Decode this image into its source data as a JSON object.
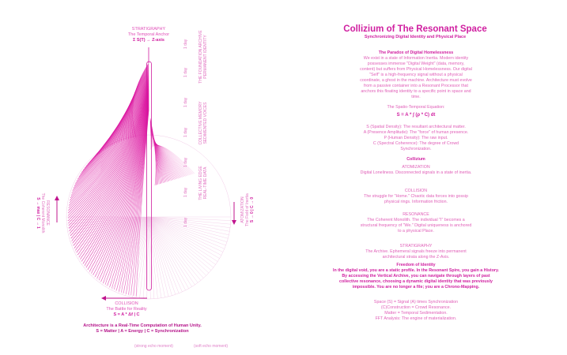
{
  "diagram": {
    "stratigraphy": {
      "title": "STRATIGRAPHY",
      "subtitle": "The Temporal Anchor",
      "formula": "Σ S(T) → Z-axis"
    },
    "collision": {
      "title": "COLLISION",
      "subtitle": "The Battle for Reality",
      "formula": "S = A * Δf | C"
    },
    "atomization": {
      "title": "ATOMIZATION",
      "subtitle": "The Field of Inertia",
      "formula": "S → 0 | C → 0"
    },
    "resonance": {
      "title": "RESONANCE",
      "subtitle": "The Coherent Monolith",
      "formula": "S → max | C → 1"
    },
    "vertical_labels": [
      {
        "title": "THE FOUNDATION ARCHIVE",
        "subtitle": "PERMANENT IDENTITY"
      },
      {
        "title": "COLLECTIVE MEMORY",
        "subtitle": "SEDIMENTED VOICES"
      },
      {
        "title": "THE LIVING EDGE",
        "subtitle": "REAL-TIME DATA"
      }
    ],
    "day_ticks": [
      "1 day",
      "1 day",
      "1 day",
      "1 day",
      "1 day",
      "1 day",
      "1 day"
    ],
    "caption_line1": "Architecture is a Real-Time Computation of Human Unity.",
    "caption_line2": "S = Matter | A = Energy | C = Synchronization",
    "legend": [
      "(strong echo moment)",
      "(soft echo moment)"
    ]
  },
  "panel": {
    "title": "Collizium of The Resonant Space",
    "subtitle": "Synchronizing Digital Identity and Physical Place",
    "paradox_heading": "The Paradox of Digital Homelessness",
    "paradox_text": "We exist in a state of Information Inertia. Modern identity possesses immense \"Digital Weight\" (data, memory, content) but suffers from Physical Homelessness. Our digital \"Self\" is a high-frequency signal without a physical coordinate, a ghost in the machine. Architecture must evolve from a passive container into a Resonant Processor that anchors this floating identity to a specific point in space and time.",
    "equation_label": "The Spatio-Temporal Equation:",
    "equation": "S = A * ∫ (ρ * C) dt",
    "definitions": [
      "S (Spatial Density): The resultant architectural matter.",
      "A (Presence Amplitude): The \"force\" of human presence.",
      "P (Human Density): The raw input.",
      "C (Spectral Coherence): The degree of Crowd Synchronization."
    ],
    "collizium_label": "Collizium",
    "stages": [
      {
        "name": "ATOMIZATION",
        "text": "Digital Loneliness. Disconnected signals in a state of inertia."
      },
      {
        "name": "COLLISION",
        "text": "The struggle for \"Home.\" Chaotic data forces into gossip physical rings. Information friction."
      },
      {
        "name": "RESONANCE",
        "text": "The Coherent Monolith. The individual \"I\" becomes a structural frequency of \"We.\" Digital uniqueness is anchored to a physical Place."
      },
      {
        "name": "STRATIGRAPHY",
        "text": "The Archive. Ephemeral signals freeze into permanent architectural strata along the Z-Axis."
      }
    ],
    "freedom_heading": "Freedom of Identity",
    "freedom_text": "In the digital void, you are a static profile. In the Resonant Spire, you gain a History. By accessing the Vertical Archive, you can navigate through layers of past collective resonance, choosing a dynamic digital identity that was previously impossible. You are no longer a file; you are a Chrono-Mapping.",
    "summary": [
      "Space (S) = Signal (A) times Synchronization",
      "(C)Construction = Crowd Resonance.",
      "Matter = Temporal Sedimentation.",
      "FFT Analysis: The engine of materialization."
    ]
  }
}
